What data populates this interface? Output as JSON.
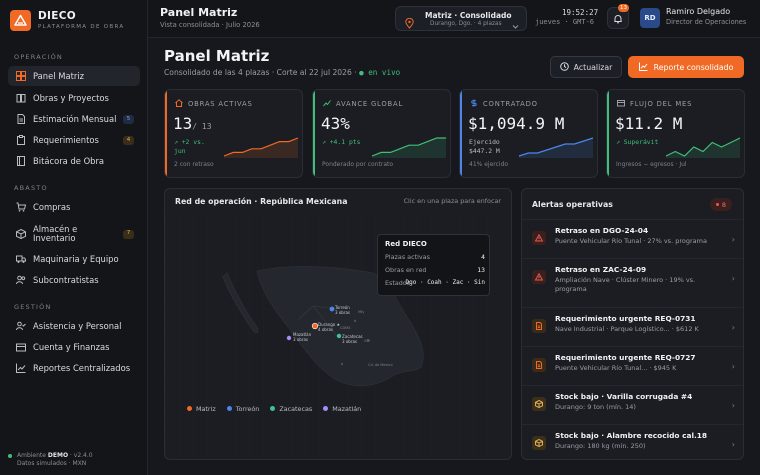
{
  "brand": {
    "name": "DIECO",
    "tagline": "PLATAFORMA DE OBRA"
  },
  "sidebar": {
    "sections": [
      {
        "label": "OPERACIÓN",
        "items": [
          {
            "label": "Panel Matriz",
            "icon": "dashboard-icon",
            "active": true
          },
          {
            "label": "Obras y Proyectos",
            "icon": "book-icon"
          },
          {
            "label": "Estimación Mensual",
            "icon": "document-icon",
            "badge": "5"
          },
          {
            "label": "Requerimientos",
            "icon": "clipboard-icon",
            "badge": "4"
          },
          {
            "label": "Bitácora de Obra",
            "icon": "notebook-icon"
          }
        ]
      },
      {
        "label": "ABASTO",
        "items": [
          {
            "label": "Compras",
            "icon": "cart-icon"
          },
          {
            "label": "Almacén e Inventario",
            "icon": "box-icon",
            "badge": "7"
          },
          {
            "label": "Maquinaria y Equipo",
            "icon": "truck-icon"
          },
          {
            "label": "Subcontratistas",
            "icon": "users-icon"
          }
        ]
      },
      {
        "label": "GESTIÓN",
        "items": [
          {
            "label": "Asistencia y Personal",
            "icon": "user-check-icon"
          },
          {
            "label": "Cuenta y Finanzas",
            "icon": "wallet-icon"
          },
          {
            "label": "Reportes Centralizados",
            "icon": "chart-icon"
          }
        ]
      }
    ],
    "env_prefix": "Ambiente",
    "env_name": "DEMO",
    "env_version": "· v2.4.0",
    "env_line2": "Datos simulados · MXN"
  },
  "topbar": {
    "title": "Panel Matriz",
    "subtitle": "Vista consolidada · Julio 2026",
    "plaza_main": "Matriz · Consolidado",
    "plaza_sub": "Durango, Dgo. · 4 plazas",
    "clock_time": "19:52:27",
    "clock_sub": "jueves · GMT-6",
    "notif_count": "13",
    "user_initials": "RD",
    "user_name": "Ramiro Delgado",
    "user_role": "Director de Operaciones"
  },
  "header": {
    "title": "Panel Matriz",
    "subtitle": "Consolidado de las 4 plazas · Corte al 22 jul 2026 ·",
    "live": "● en vivo",
    "refresh_label": "Actualizar",
    "report_label": "Reporte consolidado"
  },
  "kpis": [
    {
      "label": "OBRAS ACTIVAS",
      "value": "13",
      "suffix": "/ 13",
      "delta1": "+2 vs.",
      "delta2": "jun",
      "foot": "2 con retraso",
      "accent": "#f06a25",
      "spark": [
        2,
        3,
        3,
        4,
        4,
        5,
        6,
        6,
        7
      ]
    },
    {
      "label": "AVANCE GLOBAL",
      "value": "43%",
      "suffix": "",
      "delta1": "+4.1 pts",
      "delta2": "",
      "foot": "Ponderado por contrato",
      "accent": "#3fbf7a",
      "spark": [
        2,
        3,
        3,
        4,
        5,
        5,
        6,
        7,
        7
      ]
    },
    {
      "label": "CONTRATADO",
      "value": "$1,094.9 M",
      "suffix": "",
      "delta1": "Ejercido",
      "delta2": "$447.2 M",
      "foot": "41% ejercido",
      "accent": "#4b86e8",
      "spark": [
        1,
        2,
        2,
        3,
        4,
        5,
        5,
        6,
        7
      ]
    },
    {
      "label": "FLUJO DEL MES",
      "value": "$11.2 M",
      "suffix": "",
      "delta1": "Superávit",
      "delta2": "",
      "foot": "Ingresos − egresos · Jul",
      "accent": "#3fbf7a",
      "spark": [
        3,
        4,
        3,
        5,
        4,
        6,
        5,
        6,
        7
      ]
    }
  ],
  "map": {
    "title": "Red de operación · República Mexicana",
    "hint": "Clic en una plaza para enfocar",
    "tooltip_title": "Red DIECO",
    "tooltip_rows": [
      {
        "label": "Plazas activas",
        "value": "4"
      },
      {
        "label": "Obras en red",
        "value": "13"
      },
      {
        "label": "Estados",
        "value": "Dgo · Coah · Zac · Sin"
      }
    ],
    "plazas": [
      {
        "name": "Torreón",
        "sub": "3 obras",
        "color": "#4b86e8"
      },
      {
        "name": "Durango ★",
        "sub": "4 obras",
        "color": "#f06a25"
      },
      {
        "name": "Mazatlán",
        "sub": "3 obras",
        "color": "#a78bfa"
      },
      {
        "name": "Zacatecas",
        "sub": "3 obras",
        "color": "#3fbfa0"
      }
    ],
    "cities": [
      "Mty",
      "CDMX",
      "Gdl",
      "Cd. de Mexico"
    ],
    "legend": [
      {
        "name": "Matriz",
        "color": "#f06a25"
      },
      {
        "name": "Torreón",
        "color": "#4b86e8"
      },
      {
        "name": "Zacatecas",
        "color": "#3fbfa0"
      },
      {
        "name": "Mazatlán",
        "color": "#a78bfa"
      }
    ]
  },
  "alerts": {
    "title": "Alertas operativas",
    "count": "8",
    "items": [
      {
        "title": "Retraso en DGO-24-04",
        "desc": "Puente Vehicular Río Tunal · 27% vs. programa",
        "icon": "warning-icon",
        "color": "#e35a4a"
      },
      {
        "title": "Retraso en ZAC-24-09",
        "desc": "Ampliación Nave · Clúster Minero · 19% vs. programa",
        "icon": "warning-icon",
        "color": "#e35a4a"
      },
      {
        "title": "Requerimiento urgente REQ-0731",
        "desc": "Nave Industrial · Parque Logístico... · $612 K",
        "icon": "document-icon",
        "color": "#f06a25"
      },
      {
        "title": "Requerimiento urgente REQ-0727",
        "desc": "Puente Vehicular Río Tunal... · $945 K",
        "icon": "document-icon",
        "color": "#f06a25"
      },
      {
        "title": "Stock bajo · Varilla corrugada #4",
        "desc": "Durango: 9 ton (mín. 14)",
        "icon": "box-icon",
        "color": "#e2ad55"
      },
      {
        "title": "Stock bajo · Alambre recocido cal.18",
        "desc": "Durango: 180 kg (mín. 250)",
        "icon": "box-icon",
        "color": "#e2ad55"
      }
    ]
  }
}
